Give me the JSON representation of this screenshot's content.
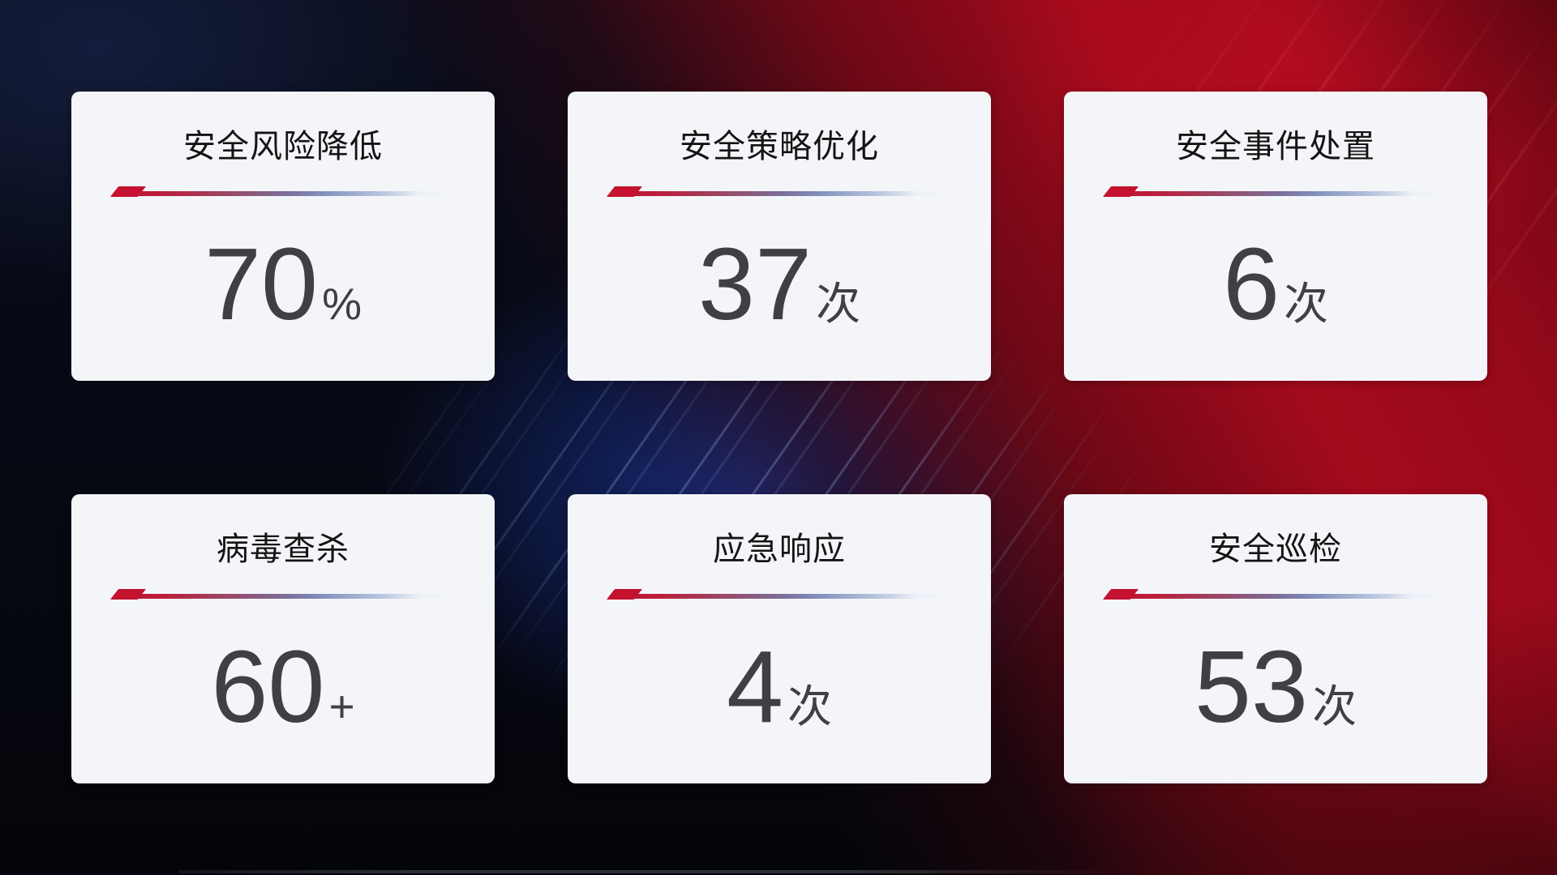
{
  "cards": [
    {
      "title": "安全风险降低",
      "value": "70",
      "unit": "%"
    },
    {
      "title": "安全策略优化",
      "value": "37",
      "unit": "次"
    },
    {
      "title": "安全事件处置",
      "value": "6",
      "unit": "次"
    },
    {
      "title": "病毒查杀",
      "value": "60",
      "unit": "+"
    },
    {
      "title": "应急响应",
      "value": "4",
      "unit": "次"
    },
    {
      "title": "安全巡检",
      "value": "53",
      "unit": "次"
    }
  ],
  "colors": {
    "card_background": "#f4f5f9",
    "title_text": "#141414",
    "value_text": "#3f4045",
    "accent_red": "#c41230",
    "background_red": "#a30a1c",
    "background_blue": "#12256e",
    "background_base": "#06080f"
  }
}
